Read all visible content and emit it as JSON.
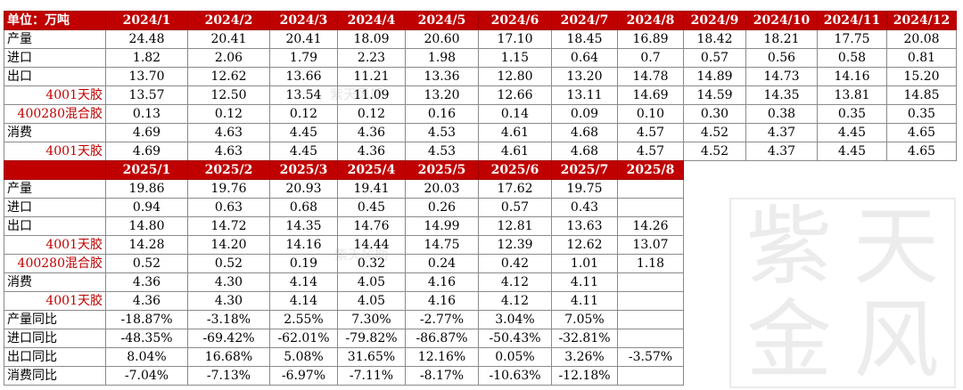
{
  "watermark": {
    "chars": [
      "紫",
      "天",
      "金",
      "风"
    ],
    "mid_text": "紫天风期"
  },
  "table1": {
    "header": [
      "单位：万吨",
      "2024/1",
      "2024/2",
      "2024/3",
      "2024/4",
      "2024/5",
      "2024/6",
      "2024/7",
      "2024/8",
      "2024/9",
      "2024/10",
      "2024/11",
      "2024/12"
    ],
    "rows": [
      {
        "label": "产量",
        "sub": false,
        "values": [
          "24.48",
          "20.41",
          "20.41",
          "18.09",
          "20.60",
          "17.10",
          "18.45",
          "16.89",
          "18.42",
          "18.21",
          "17.75",
          "20.08"
        ]
      },
      {
        "label": "进口",
        "sub": false,
        "values": [
          "1.82",
          "2.06",
          "1.79",
          "2.23",
          "1.98",
          "1.15",
          "0.64",
          "0.7",
          "0.57",
          "0.56",
          "0.58",
          "0.81"
        ]
      },
      {
        "label": "出口",
        "sub": false,
        "values": [
          "13.70",
          "12.62",
          "13.66",
          "11.21",
          "13.36",
          "12.80",
          "13.20",
          "14.78",
          "14.89",
          "14.73",
          "14.16",
          "15.20"
        ]
      },
      {
        "label": "4001天胶",
        "sub": true,
        "values": [
          "13.57",
          "12.50",
          "13.54",
          "11.09",
          "13.20",
          "12.66",
          "13.11",
          "14.69",
          "14.59",
          "14.35",
          "13.81",
          "14.85"
        ]
      },
      {
        "label": "400280混合胶",
        "sub": true,
        "values": [
          "0.13",
          "0.12",
          "0.12",
          "0.12",
          "0.16",
          "0.14",
          "0.09",
          "0.10",
          "0.30",
          "0.38",
          "0.35",
          "0.35"
        ]
      },
      {
        "label": "消费",
        "sub": false,
        "values": [
          "4.69",
          "4.63",
          "4.45",
          "4.36",
          "4.53",
          "4.61",
          "4.68",
          "4.57",
          "4.52",
          "4.37",
          "4.45",
          "4.65"
        ]
      },
      {
        "label": "4001天胶",
        "sub": true,
        "values": [
          "4.69",
          "4.63",
          "4.45",
          "4.36",
          "4.53",
          "4.61",
          "4.68",
          "4.57",
          "4.52",
          "4.37",
          "4.45",
          "4.65"
        ]
      }
    ]
  },
  "table2": {
    "header": [
      "",
      "2025/1",
      "2025/2",
      "2025/3",
      "2025/4",
      "2025/5",
      "2025/6",
      "2025/7",
      "2025/8"
    ],
    "rows": [
      {
        "label": "产量",
        "sub": false,
        "values": [
          "19.86",
          "19.76",
          "20.93",
          "19.41",
          "20.03",
          "17.62",
          "19.75",
          ""
        ]
      },
      {
        "label": "进口",
        "sub": false,
        "values": [
          "0.94",
          "0.63",
          "0.68",
          "0.45",
          "0.26",
          "0.57",
          "0.43",
          ""
        ]
      },
      {
        "label": "出口",
        "sub": false,
        "values": [
          "14.80",
          "14.72",
          "14.35",
          "14.76",
          "14.99",
          "12.81",
          "13.63",
          "14.26"
        ]
      },
      {
        "label": "4001天胶",
        "sub": true,
        "values": [
          "14.28",
          "14.20",
          "14.16",
          "14.44",
          "14.75",
          "12.39",
          "12.62",
          "13.07"
        ]
      },
      {
        "label": "400280混合胶",
        "sub": true,
        "values": [
          "0.52",
          "0.52",
          "0.19",
          "0.32",
          "0.24",
          "0.42",
          "1.01",
          "1.18"
        ]
      },
      {
        "label": "消费",
        "sub": false,
        "values": [
          "4.36",
          "4.30",
          "4.14",
          "4.05",
          "4.16",
          "4.12",
          "4.11",
          ""
        ]
      },
      {
        "label": "4001天胶",
        "sub": true,
        "values": [
          "4.36",
          "4.30",
          "4.14",
          "4.05",
          "4.16",
          "4.12",
          "4.11",
          ""
        ]
      },
      {
        "label": "产量同比",
        "sub": false,
        "values": [
          "-18.87%",
          "-3.18%",
          "2.55%",
          "7.30%",
          "-2.77%",
          "3.04%",
          "7.05%",
          ""
        ]
      },
      {
        "label": "进口同比",
        "sub": false,
        "values": [
          "-48.35%",
          "-69.42%",
          "-62.01%",
          "-79.82%",
          "-86.87%",
          "-50.43%",
          "-32.81%",
          ""
        ]
      },
      {
        "label": "出口同比",
        "sub": false,
        "values": [
          "8.04%",
          "16.68%",
          "5.08%",
          "31.65%",
          "12.16%",
          "0.05%",
          "3.26%",
          "-3.57%"
        ]
      },
      {
        "label": "消费同比",
        "sub": false,
        "values": [
          "-7.04%",
          "-7.13%",
          "-6.97%",
          "-7.11%",
          "-8.17%",
          "-10.63%",
          "-12.18%",
          ""
        ]
      }
    ]
  }
}
